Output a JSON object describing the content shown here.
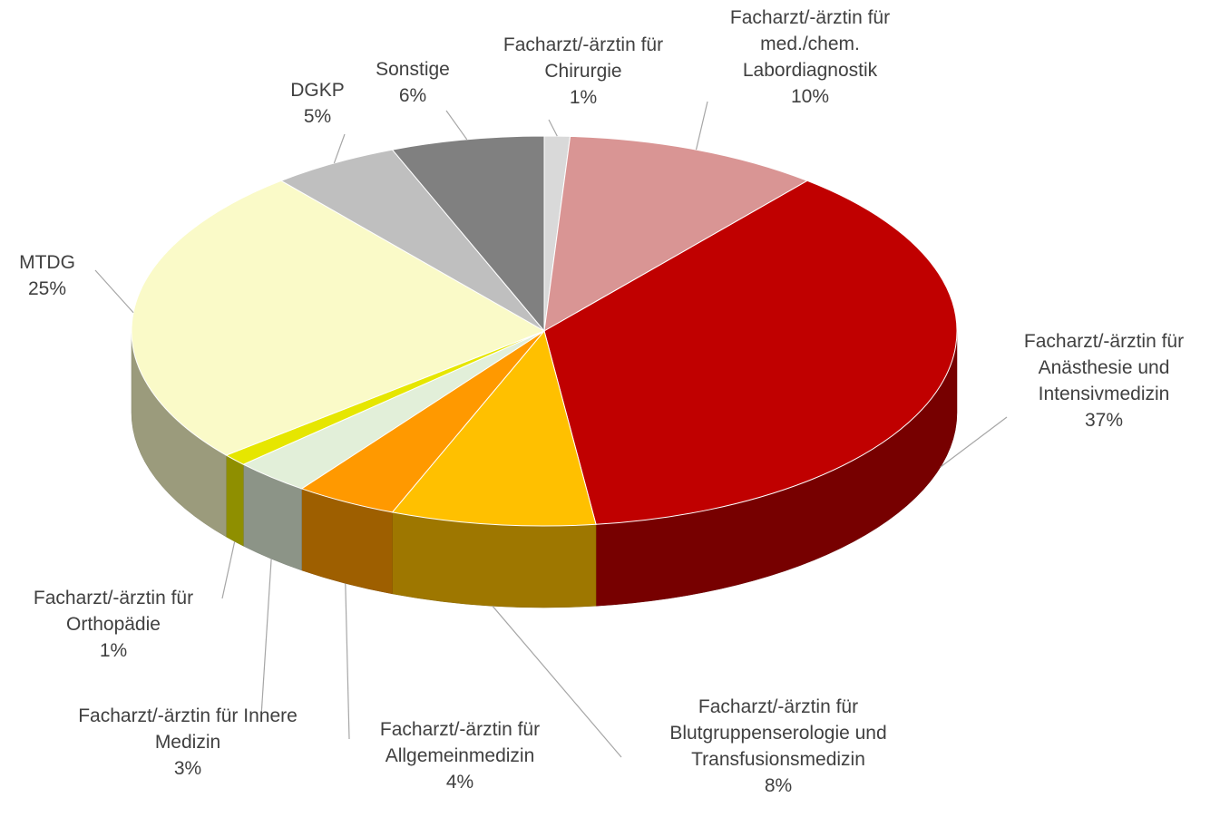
{
  "chart_data": {
    "type": "pie3d",
    "categories": [
      "Facharzt/-ärztin für Chirurgie",
      "Facharzt/-ärztin für med./chem. Labordiagnostik",
      "Facharzt/-ärztin für Anästhesie und Intensivmedizin",
      "Facharzt/-ärztin für Blutgruppenserologie und Transfusionsmedizin",
      "Facharzt/-ärztin für Allgemeinmedizin",
      "Facharzt/-ärztin für Innere Medizin",
      "Facharzt/-ärztin für Orthopädie",
      "MTDG",
      "DGKP",
      "Sonstige"
    ],
    "values": [
      1,
      10,
      37,
      8,
      4,
      3,
      1,
      25,
      5,
      6
    ],
    "value_labels": [
      "1%",
      "10%",
      "37%",
      "8%",
      "4%",
      "3%",
      "1%",
      "25%",
      "5%",
      "6%"
    ],
    "colors": [
      "#d9d9d9",
      "#d99594",
      "#c00000",
      "#ffc000",
      "#ff9900",
      "#e2efd9",
      "#e6e600",
      "#fafac8",
      "#bfbfbf",
      "#808080"
    ]
  }
}
